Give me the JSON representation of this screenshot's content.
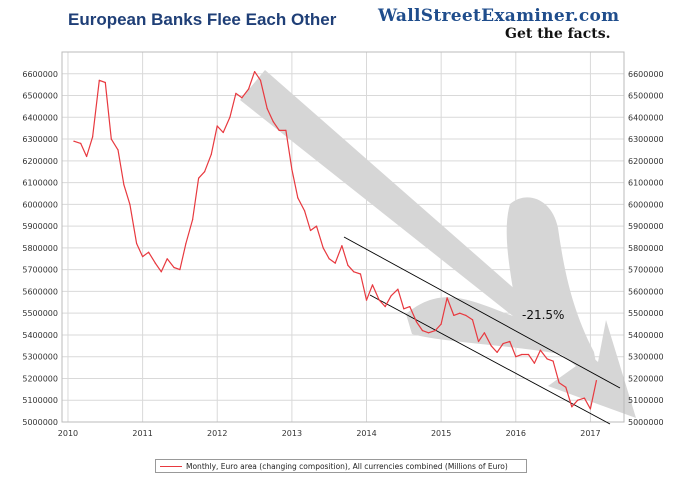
{
  "header": {
    "title": "European Banks Flee Each Other",
    "brand": "WallStreetExaminer.com",
    "tagline": "Get the facts."
  },
  "annotation": {
    "text": "-21.5%"
  },
  "colors": {
    "series": "#e8393f",
    "title": "#1f3f77",
    "arrow": "#d6d6d6",
    "grid": "#d9d9d9",
    "channel": "#000000"
  },
  "chart_data": {
    "type": "line",
    "title": "European Banks Flee Each Other",
    "xlabel": "",
    "ylabel": "",
    "xlim": [
      2009.92,
      2017.45
    ],
    "ylim": [
      5000000,
      6700000
    ],
    "x_ticks": [
      "2010",
      "2011",
      "2012",
      "2013",
      "2014",
      "2015",
      "2016",
      "2017"
    ],
    "y_ticks": [
      "5000000",
      "5100000",
      "5200000",
      "5300000",
      "5400000",
      "5500000",
      "5600000",
      "5700000",
      "5800000",
      "5900000",
      "6000000",
      "6100000",
      "6200000",
      "6300000",
      "6400000",
      "6500000",
      "6600000"
    ],
    "legend_position": "bottom",
    "grid": true,
    "series": [
      {
        "name": "Monthly, Euro area (changing composition), All currencies combined (Millions of Euro)",
        "x": [
          2010.08,
          2010.17,
          2010.25,
          2010.33,
          2010.42,
          2010.5,
          2010.58,
          2010.67,
          2010.75,
          2010.83,
          2010.92,
          2011.0,
          2011.08,
          2011.17,
          2011.25,
          2011.33,
          2011.42,
          2011.5,
          2011.58,
          2011.67,
          2011.75,
          2011.83,
          2011.92,
          2012.0,
          2012.08,
          2012.17,
          2012.25,
          2012.33,
          2012.42,
          2012.5,
          2012.58,
          2012.67,
          2012.75,
          2012.83,
          2012.92,
          2013.0,
          2013.08,
          2013.17,
          2013.25,
          2013.33,
          2013.42,
          2013.5,
          2013.58,
          2013.67,
          2013.75,
          2013.83,
          2013.92,
          2014.0,
          2014.08,
          2014.17,
          2014.25,
          2014.33,
          2014.42,
          2014.5,
          2014.58,
          2014.67,
          2014.75,
          2014.83,
          2014.92,
          2015.0,
          2015.08,
          2015.17,
          2015.25,
          2015.33,
          2015.42,
          2015.5,
          2015.58,
          2015.67,
          2015.75,
          2015.83,
          2015.92,
          2016.0,
          2016.08,
          2016.17,
          2016.25,
          2016.33,
          2016.42,
          2016.5,
          2016.58,
          2016.67,
          2016.75,
          2016.83,
          2016.92,
          2017.0,
          2017.08
        ],
        "values": [
          6290000,
          6280000,
          6220000,
          6310000,
          6570000,
          6560000,
          6300000,
          6250000,
          6090000,
          6000000,
          5820000,
          5760000,
          5780000,
          5730000,
          5690000,
          5750000,
          5710000,
          5700000,
          5820000,
          5930000,
          6120000,
          6150000,
          6230000,
          6360000,
          6330000,
          6400000,
          6510000,
          6490000,
          6530000,
          6610000,
          6570000,
          6440000,
          6380000,
          6340000,
          6340000,
          6160000,
          6030000,
          5970000,
          5880000,
          5900000,
          5800000,
          5750000,
          5730000,
          5810000,
          5720000,
          5690000,
          5680000,
          5560000,
          5630000,
          5560000,
          5530000,
          5580000,
          5610000,
          5520000,
          5530000,
          5460000,
          5420000,
          5410000,
          5420000,
          5450000,
          5570000,
          5490000,
          5500000,
          5490000,
          5470000,
          5370000,
          5410000,
          5350000,
          5320000,
          5360000,
          5370000,
          5300000,
          5310000,
          5310000,
          5270000,
          5330000,
          5290000,
          5280000,
          5180000,
          5160000,
          5070000,
          5100000,
          5110000,
          5060000,
          5190000
        ]
      }
    ],
    "annotations": [
      "-21.5%"
    ]
  }
}
